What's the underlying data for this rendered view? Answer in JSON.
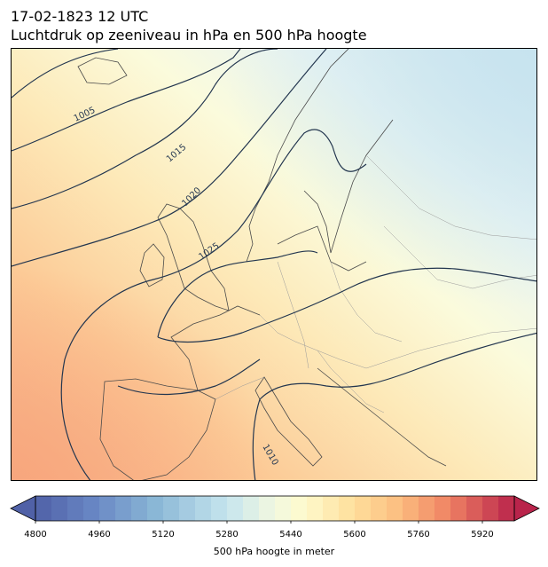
{
  "title_line1": "17-02-1823 12 UTC",
  "title_line2": "Luchtdruk op zeeniveau in hPa en 500 hPa hoogte",
  "colorbar": {
    "label": "500 hPa hoogte in meter",
    "ticks": [
      "4800",
      "4960",
      "5120",
      "5280",
      "5440",
      "5600",
      "5760",
      "5920"
    ],
    "range": [
      4800,
      6000
    ],
    "step": 40,
    "extend": "both"
  },
  "isobar_labels": [
    "1005",
    "1015",
    "1020",
    "1025",
    "1010"
  ],
  "colors": {
    "isobar": "#23364f",
    "coastline": "#4a4a4a",
    "border": "#9a9a9a"
  },
  "chart_data": {
    "type": "heatmap",
    "field": "500 hPa hoogte",
    "contours": "Luchtdruk op zeeniveau",
    "isobars_hPa": [
      1005,
      1010,
      1015,
      1020,
      1025
    ],
    "colorbar_min": 4800,
    "colorbar_max": 6000,
    "colorbar_step": 40
  }
}
